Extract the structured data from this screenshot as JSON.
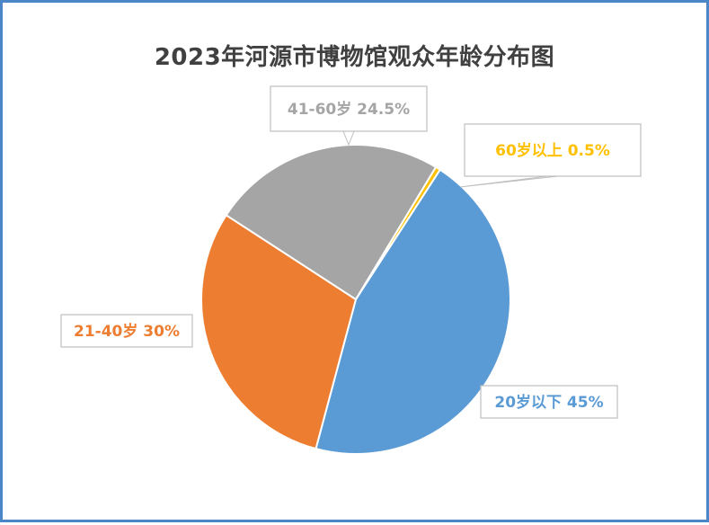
{
  "chart_data": {
    "type": "pie",
    "title": "2023年河源市博物馆观众年龄分布图",
    "categories": [
      "20岁以下",
      "21-40岁",
      "41-60岁",
      "60岁以上"
    ],
    "values": [
      45,
      30,
      24.5,
      0.5
    ],
    "value_labels": [
      "45%",
      "30%",
      "24.5%",
      "0.5%"
    ],
    "colors": [
      "#5b9bd5",
      "#ed7d31",
      "#a5a5a5",
      "#ffc000"
    ],
    "label_colors": [
      "#5b9bd5",
      "#ed7d31",
      "#a5a5a5",
      "#ffc000"
    ],
    "legend": "none",
    "data_labels": "category-and-percent-callouts"
  }
}
